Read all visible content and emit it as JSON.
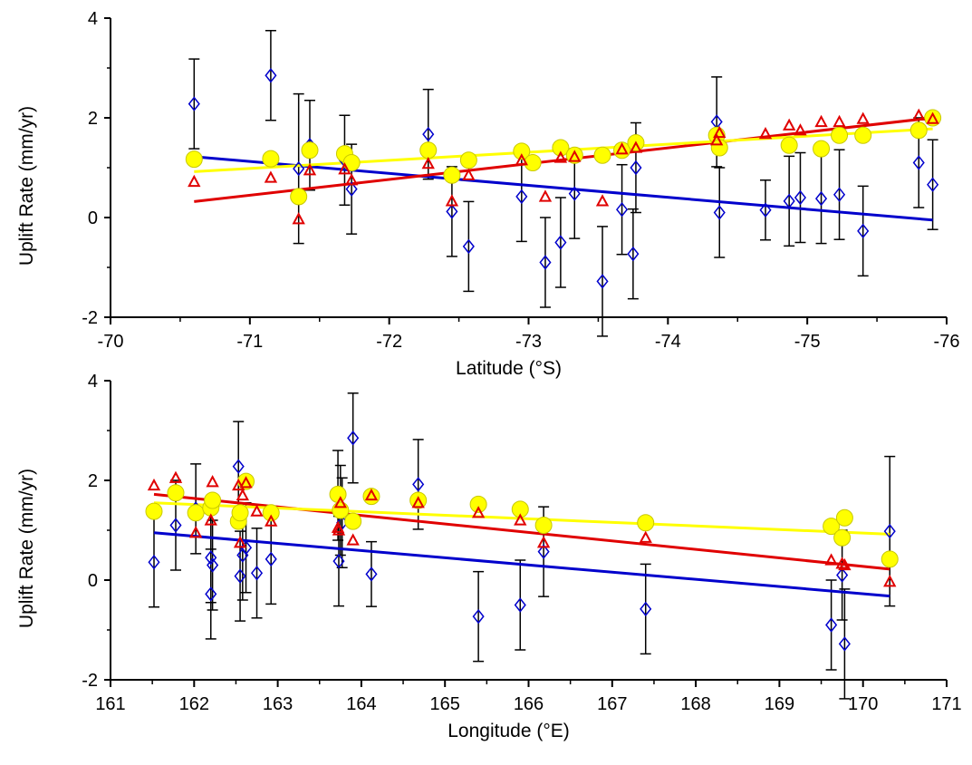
{
  "colors": {
    "blue": "#0000cc",
    "red": "#e00000",
    "yellow": "#ffff00",
    "yellow_edge": "#c8c800",
    "error_bar": "#000000"
  },
  "chart_data": [
    {
      "type": "scatter",
      "xlabel": "Latitude (°S)",
      "ylabel": "Uplift Rate (mm/yr)",
      "xlim": [
        -70,
        -76
      ],
      "ylim": [
        -2,
        4
      ],
      "xticks": [
        -70,
        -71,
        -72,
        -73,
        -74,
        -75,
        -76
      ],
      "yticks": [
        -2,
        0,
        2,
        4
      ],
      "series": [
        {
          "marker": "diamond",
          "color": "blue",
          "errorbars": true,
          "points": [
            {
              "x": -70.6,
              "y": 2.28,
              "err": 0.9
            },
            {
              "x": -71.15,
              "y": 2.85,
              "err": 0.9
            },
            {
              "x": -71.35,
              "y": 0.98,
              "err": 1.5
            },
            {
              "x": -71.43,
              "y": 1.45,
              "err": 0.9
            },
            {
              "x": -71.68,
              "y": 1.15,
              "err": 0.9
            },
            {
              "x": -71.73,
              "y": 0.57,
              "err": 0.9
            },
            {
              "x": -72.28,
              "y": 1.67,
              "err": 0.9
            },
            {
              "x": -72.45,
              "y": 0.12,
              "err": 0.9
            },
            {
              "x": -72.57,
              "y": -0.58,
              "err": 0.9
            },
            {
              "x": -72.95,
              "y": 0.42,
              "err": 0.9
            },
            {
              "x": -73.12,
              "y": -0.9,
              "err": 0.9
            },
            {
              "x": -73.23,
              "y": -0.5,
              "err": 0.9
            },
            {
              "x": -73.33,
              "y": 0.48,
              "err": 0.9
            },
            {
              "x": -73.53,
              "y": -1.28,
              "err": 1.1
            },
            {
              "x": -73.67,
              "y": 0.16,
              "err": 0.9
            },
            {
              "x": -73.75,
              "y": -0.73,
              "err": 0.9
            },
            {
              "x": -73.77,
              "y": 1.0,
              "err": 0.9
            },
            {
              "x": -74.35,
              "y": 1.92,
              "err": 0.9
            },
            {
              "x": -74.37,
              "y": 0.1,
              "err": 0.9
            },
            {
              "x": -74.7,
              "y": 0.15,
              "err": 0.6
            },
            {
              "x": -74.87,
              "y": 0.33,
              "err": 0.9
            },
            {
              "x": -74.95,
              "y": 0.4,
              "err": 0.9
            },
            {
              "x": -75.1,
              "y": 0.38,
              "err": 0.9
            },
            {
              "x": -75.23,
              "y": 0.46,
              "err": 0.9
            },
            {
              "x": -75.4,
              "y": -0.27,
              "err": 0.9
            },
            {
              "x": -75.8,
              "y": 1.1,
              "err": 0.9
            },
            {
              "x": -75.9,
              "y": 0.66,
              "err": 0.9
            }
          ],
          "trend": [
            [
              -70.6,
              1.22
            ],
            [
              -75.9,
              -0.05
            ]
          ]
        },
        {
          "marker": "triangle",
          "color": "red",
          "points": [
            {
              "x": -70.6,
              "y": 0.72
            },
            {
              "x": -71.15,
              "y": 0.8
            },
            {
              "x": -71.35,
              "y": -0.03
            },
            {
              "x": -71.43,
              "y": 0.95
            },
            {
              "x": -71.68,
              "y": 0.97
            },
            {
              "x": -71.73,
              "y": 0.75
            },
            {
              "x": -72.28,
              "y": 1.08
            },
            {
              "x": -72.45,
              "y": 0.33
            },
            {
              "x": -72.57,
              "y": 0.85
            },
            {
              "x": -72.95,
              "y": 1.15
            },
            {
              "x": -73.12,
              "y": 0.42
            },
            {
              "x": -73.23,
              "y": 1.2
            },
            {
              "x": -73.33,
              "y": 1.22
            },
            {
              "x": -73.53,
              "y": 0.33
            },
            {
              "x": -73.67,
              "y": 1.37
            },
            {
              "x": -73.77,
              "y": 1.4
            },
            {
              "x": -74.35,
              "y": 1.55
            },
            {
              "x": -74.37,
              "y": 1.7
            },
            {
              "x": -74.7,
              "y": 1.68
            },
            {
              "x": -74.87,
              "y": 1.85
            },
            {
              "x": -74.95,
              "y": 1.75
            },
            {
              "x": -75.1,
              "y": 1.92
            },
            {
              "x": -75.23,
              "y": 1.92
            },
            {
              "x": -75.4,
              "y": 1.98
            },
            {
              "x": -75.8,
              "y": 2.05
            },
            {
              "x": -75.9,
              "y": 1.98
            }
          ],
          "trend": [
            [
              -70.6,
              0.32
            ],
            [
              -75.9,
              2.0
            ]
          ]
        },
        {
          "marker": "circle",
          "color": "yellow",
          "points": [
            {
              "x": -70.6,
              "y": 1.17
            },
            {
              "x": -71.15,
              "y": 1.18
            },
            {
              "x": -71.35,
              "y": 0.42
            },
            {
              "x": -71.43,
              "y": 1.35
            },
            {
              "x": -71.68,
              "y": 1.28
            },
            {
              "x": -71.73,
              "y": 1.1
            },
            {
              "x": -72.28,
              "y": 1.35
            },
            {
              "x": -72.45,
              "y": 0.85
            },
            {
              "x": -72.57,
              "y": 1.15
            },
            {
              "x": -72.95,
              "y": 1.33
            },
            {
              "x": -73.03,
              "y": 1.1
            },
            {
              "x": -73.23,
              "y": 1.4
            },
            {
              "x": -73.33,
              "y": 1.25
            },
            {
              "x": -73.53,
              "y": 1.25
            },
            {
              "x": -73.67,
              "y": 1.35
            },
            {
              "x": -73.77,
              "y": 1.5
            },
            {
              "x": -74.35,
              "y": 1.65
            },
            {
              "x": -74.37,
              "y": 1.4
            },
            {
              "x": -74.87,
              "y": 1.45
            },
            {
              "x": -75.1,
              "y": 1.38
            },
            {
              "x": -75.23,
              "y": 1.65
            },
            {
              "x": -75.4,
              "y": 1.65
            },
            {
              "x": -75.8,
              "y": 1.75
            },
            {
              "x": -75.9,
              "y": 2.0
            }
          ],
          "trend": [
            [
              -70.6,
              0.92
            ],
            [
              -75.9,
              1.78
            ]
          ]
        }
      ]
    },
    {
      "type": "scatter",
      "xlabel": "Longitude (°E)",
      "ylabel": "Uplift Rate (mm/yr)",
      "xlim": [
        161,
        171
      ],
      "ylim": [
        -2,
        4
      ],
      "xticks": [
        161,
        162,
        163,
        164,
        165,
        166,
        167,
        168,
        169,
        170,
        171
      ],
      "yticks": [
        -2,
        0,
        2,
        4
      ],
      "series": [
        {
          "marker": "diamond",
          "color": "blue",
          "errorbars": true,
          "points": [
            {
              "x": 161.52,
              "y": 0.36,
              "err": 0.9
            },
            {
              "x": 161.78,
              "y": 1.1,
              "err": 0.9
            },
            {
              "x": 162.02,
              "y": 1.43,
              "err": 0.9
            },
            {
              "x": 162.2,
              "y": 0.45,
              "err": 0.9
            },
            {
              "x": 162.2,
              "y": -0.28,
              "err": 0.9
            },
            {
              "x": 162.22,
              "y": 0.3,
              "err": 0.9
            },
            {
              "x": 162.53,
              "y": 2.28,
              "err": 0.9
            },
            {
              "x": 162.55,
              "y": 0.08,
              "err": 0.9
            },
            {
              "x": 162.58,
              "y": 0.5,
              "err": 0.9
            },
            {
              "x": 162.62,
              "y": 0.65,
              "err": 0.9
            },
            {
              "x": 162.75,
              "y": 0.14,
              "err": 0.9
            },
            {
              "x": 162.92,
              "y": 0.42,
              "err": 0.9
            },
            {
              "x": 163.72,
              "y": 1.7,
              "err": 0.9
            },
            {
              "x": 163.73,
              "y": 0.38,
              "err": 0.9
            },
            {
              "x": 163.75,
              "y": 1.4,
              "err": 0.9
            },
            {
              "x": 163.77,
              "y": 1.15,
              "err": 0.9
            },
            {
              "x": 163.9,
              "y": 2.85,
              "err": 0.9
            },
            {
              "x": 164.12,
              "y": 0.12,
              "err": 0.65
            },
            {
              "x": 164.68,
              "y": 1.92,
              "err": 0.9
            },
            {
              "x": 165.4,
              "y": -0.73,
              "err": 0.9
            },
            {
              "x": 165.9,
              "y": -0.5,
              "err": 0.9
            },
            {
              "x": 166.18,
              "y": 0.57,
              "err": 0.9
            },
            {
              "x": 167.4,
              "y": -0.58,
              "err": 0.9
            },
            {
              "x": 169.62,
              "y": -0.9,
              "err": 0.9
            },
            {
              "x": 169.75,
              "y": 0.1,
              "err": 0.9
            },
            {
              "x": 169.78,
              "y": -1.28,
              "err": 1.1
            },
            {
              "x": 170.32,
              "y": 0.98,
              "err": 1.5
            }
          ],
          "trend": [
            [
              161.52,
              0.95
            ],
            [
              170.32,
              -0.32
            ]
          ]
        },
        {
          "marker": "triangle",
          "color": "red",
          "points": [
            {
              "x": 161.52,
              "y": 1.9
            },
            {
              "x": 161.78,
              "y": 2.05
            },
            {
              "x": 162.02,
              "y": 0.95
            },
            {
              "x": 162.2,
              "y": 1.2
            },
            {
              "x": 162.22,
              "y": 1.97
            },
            {
              "x": 162.53,
              "y": 1.9
            },
            {
              "x": 162.55,
              "y": 0.75
            },
            {
              "x": 162.58,
              "y": 1.7
            },
            {
              "x": 162.62,
              "y": 1.95
            },
            {
              "x": 162.75,
              "y": 1.38
            },
            {
              "x": 162.92,
              "y": 1.18
            },
            {
              "x": 163.72,
              "y": 1.05
            },
            {
              "x": 163.73,
              "y": 1.0
            },
            {
              "x": 163.75,
              "y": 1.55
            },
            {
              "x": 163.9,
              "y": 0.8
            },
            {
              "x": 164.12,
              "y": 1.7
            },
            {
              "x": 164.68,
              "y": 1.55
            },
            {
              "x": 165.4,
              "y": 1.35
            },
            {
              "x": 165.9,
              "y": 1.2
            },
            {
              "x": 166.18,
              "y": 0.75
            },
            {
              "x": 167.4,
              "y": 0.85
            },
            {
              "x": 169.62,
              "y": 0.4
            },
            {
              "x": 169.75,
              "y": 0.33
            },
            {
              "x": 169.78,
              "y": 0.3
            },
            {
              "x": 170.32,
              "y": -0.03
            }
          ],
          "trend": [
            [
              161.52,
              1.72
            ],
            [
              170.32,
              0.22
            ]
          ]
        },
        {
          "marker": "circle",
          "color": "yellow",
          "points": [
            {
              "x": 161.52,
              "y": 1.38
            },
            {
              "x": 161.78,
              "y": 1.75
            },
            {
              "x": 162.02,
              "y": 1.35
            },
            {
              "x": 162.2,
              "y": 1.45
            },
            {
              "x": 162.22,
              "y": 1.6
            },
            {
              "x": 162.53,
              "y": 1.18
            },
            {
              "x": 162.55,
              "y": 1.35
            },
            {
              "x": 162.62,
              "y": 1.98
            },
            {
              "x": 162.92,
              "y": 1.35
            },
            {
              "x": 163.72,
              "y": 1.72
            },
            {
              "x": 163.75,
              "y": 1.4
            },
            {
              "x": 163.9,
              "y": 1.18
            },
            {
              "x": 164.12,
              "y": 1.68
            },
            {
              "x": 164.68,
              "y": 1.6
            },
            {
              "x": 165.4,
              "y": 1.52
            },
            {
              "x": 165.9,
              "y": 1.42
            },
            {
              "x": 166.18,
              "y": 1.1
            },
            {
              "x": 167.4,
              "y": 1.15
            },
            {
              "x": 169.62,
              "y": 1.08
            },
            {
              "x": 169.75,
              "y": 0.85
            },
            {
              "x": 169.78,
              "y": 1.25
            },
            {
              "x": 170.32,
              "y": 0.42
            }
          ],
          "trend": [
            [
              161.52,
              1.55
            ],
            [
              170.32,
              0.92
            ]
          ]
        }
      ]
    }
  ]
}
